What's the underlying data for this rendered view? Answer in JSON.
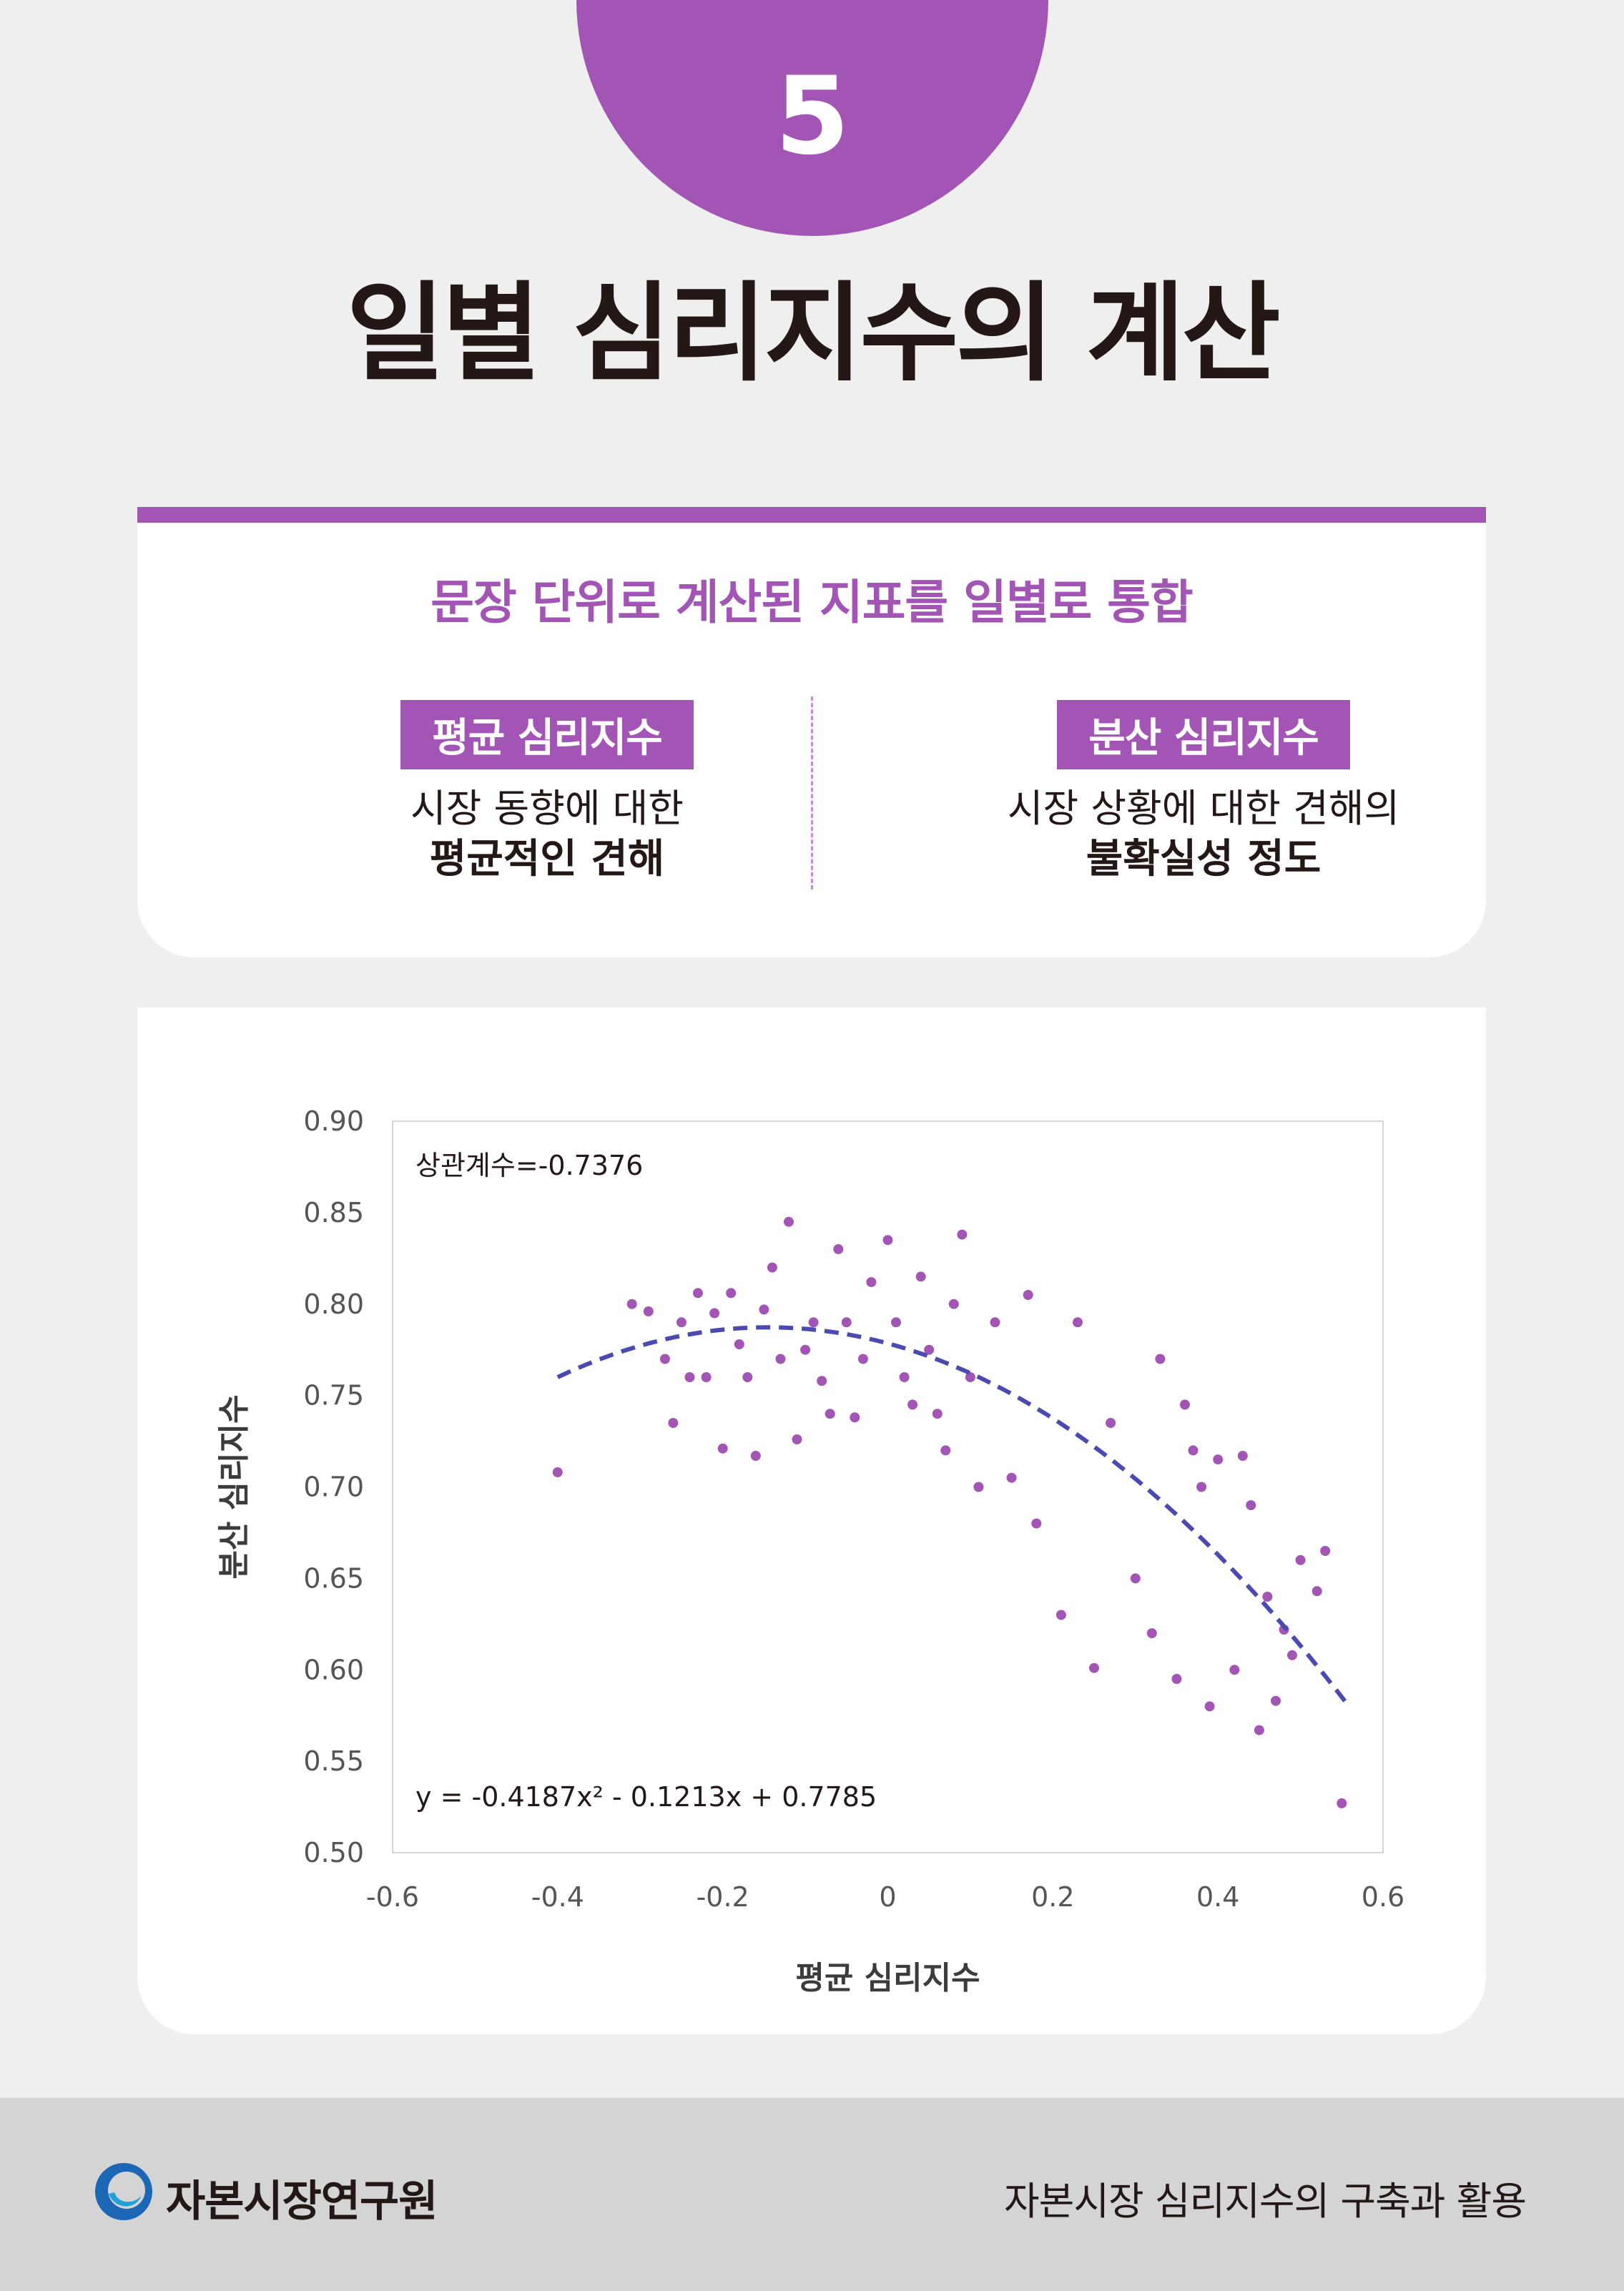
{
  "step_number": "5",
  "page_title": "일별 심리지수의 계산",
  "info": {
    "heading": "문장 단위로 계산된 지표를 일별로 통합",
    "left": {
      "badge": "평균 심리지수",
      "line1": "시장 동향에 대한",
      "line2": "평균적인 견해"
    },
    "right": {
      "badge": "분산 심리지수",
      "line1": "시장 상황에 대한 견해의",
      "line2": "불확실성 정도"
    }
  },
  "colors": {
    "accent": "#a355b6",
    "trend": "#4a4ab0",
    "text": "#231815"
  },
  "chart_data": {
    "type": "scatter",
    "xlabel": "평균 심리지수",
    "ylabel": "분산 심리지수",
    "xlim": [
      -0.6,
      0.6
    ],
    "ylim": [
      0.5,
      0.9
    ],
    "xticks": [
      "-0.6",
      "-0.4",
      "-0.2",
      "0",
      "0.2",
      "0.4",
      "0.6"
    ],
    "yticks": [
      "0.90",
      "0.85",
      "0.80",
      "0.75",
      "0.70",
      "0.65",
      "0.60",
      "0.55",
      "0.50"
    ],
    "annotation_corr": "상관계수=-0.7376",
    "annotation_eq": "y = -0.4187x² - 0.1213x + 0.7785",
    "trendline": {
      "type": "polynomial",
      "a": -0.4187,
      "b": -0.1213,
      "c": 0.7785,
      "x_range": [
        -0.4,
        0.56
      ],
      "style": "dashed"
    },
    "points": [
      [
        -0.4,
        0.708
      ],
      [
        -0.31,
        0.8
      ],
      [
        -0.29,
        0.796
      ],
      [
        -0.27,
        0.77
      ],
      [
        -0.26,
        0.735
      ],
      [
        -0.25,
        0.79
      ],
      [
        -0.24,
        0.76
      ],
      [
        -0.23,
        0.806
      ],
      [
        -0.22,
        0.76
      ],
      [
        -0.21,
        0.795
      ],
      [
        -0.2,
        0.721
      ],
      [
        -0.19,
        0.806
      ],
      [
        -0.18,
        0.778
      ],
      [
        -0.17,
        0.76
      ],
      [
        -0.16,
        0.717
      ],
      [
        -0.15,
        0.797
      ],
      [
        -0.14,
        0.82
      ],
      [
        -0.13,
        0.77
      ],
      [
        -0.12,
        0.845
      ],
      [
        -0.11,
        0.726
      ],
      [
        -0.1,
        0.775
      ],
      [
        -0.09,
        0.79
      ],
      [
        -0.08,
        0.758
      ],
      [
        -0.07,
        0.74
      ],
      [
        -0.06,
        0.83
      ],
      [
        -0.05,
        0.79
      ],
      [
        -0.04,
        0.738
      ],
      [
        -0.03,
        0.77
      ],
      [
        -0.02,
        0.812
      ],
      [
        0.0,
        0.835
      ],
      [
        0.01,
        0.79
      ],
      [
        0.02,
        0.76
      ],
      [
        0.03,
        0.745
      ],
      [
        0.04,
        0.815
      ],
      [
        0.05,
        0.775
      ],
      [
        0.06,
        0.74
      ],
      [
        0.07,
        0.72
      ],
      [
        0.08,
        0.8
      ],
      [
        0.09,
        0.838
      ],
      [
        0.1,
        0.76
      ],
      [
        0.11,
        0.7
      ],
      [
        0.13,
        0.79
      ],
      [
        0.15,
        0.705
      ],
      [
        0.17,
        0.805
      ],
      [
        0.18,
        0.68
      ],
      [
        0.21,
        0.63
      ],
      [
        0.23,
        0.79
      ],
      [
        0.25,
        0.601
      ],
      [
        0.27,
        0.735
      ],
      [
        0.3,
        0.65
      ],
      [
        0.32,
        0.62
      ],
      [
        0.33,
        0.77
      ],
      [
        0.35,
        0.595
      ],
      [
        0.36,
        0.745
      ],
      [
        0.37,
        0.72
      ],
      [
        0.38,
        0.7
      ],
      [
        0.39,
        0.58
      ],
      [
        0.4,
        0.715
      ],
      [
        0.42,
        0.6
      ],
      [
        0.43,
        0.717
      ],
      [
        0.44,
        0.69
      ],
      [
        0.45,
        0.567
      ],
      [
        0.46,
        0.64
      ],
      [
        0.47,
        0.583
      ],
      [
        0.48,
        0.622
      ],
      [
        0.49,
        0.608
      ],
      [
        0.5,
        0.66
      ],
      [
        0.52,
        0.643
      ],
      [
        0.53,
        0.665
      ],
      [
        0.55,
        0.527
      ]
    ]
  },
  "footer": {
    "logo_text": "자본시장연구원",
    "title": "자본시장 심리지수의 구축과 활용"
  }
}
